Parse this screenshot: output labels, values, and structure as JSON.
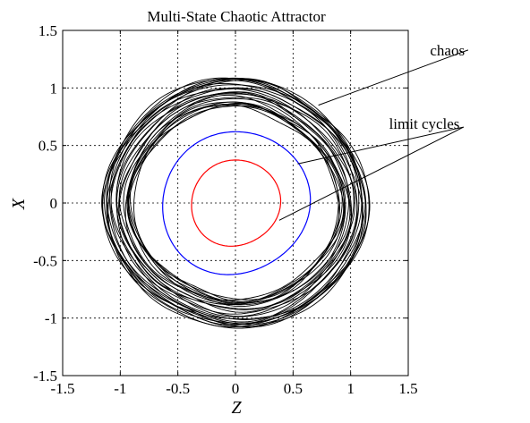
{
  "chart_data": {
    "type": "line",
    "title": "Multi-State Chaotic Attractor",
    "xlabel": "Z",
    "ylabel": "X",
    "xlim": [
      -1.5,
      1.5
    ],
    "ylim": [
      -1.5,
      1.5
    ],
    "xticks": [
      -1.5,
      -1,
      -0.5,
      0,
      0.5,
      1,
      1.5
    ],
    "yticks": [
      -1.5,
      -1,
      -0.5,
      0,
      0.5,
      1,
      1.5
    ],
    "xtick_labels": [
      "-1.5",
      "-1",
      "-0.5",
      "0",
      "0.5",
      "1",
      "1.5"
    ],
    "ytick_labels": [
      "-1.5",
      "-1",
      "-0.5",
      "0",
      "0.5",
      "1",
      "1.5"
    ],
    "grid": true,
    "aspect": "equal",
    "series": [
      {
        "color": "#000000",
        "strands": 26,
        "center_z": 0,
        "radius_range": [
          0.86,
          1.1
        ],
        "shape_note": "banded chaotic orbit with lobes near (-1.1,0) and (1.1,-0.1)",
        "extent": {
          "z": [
            -1.12,
            1.15
          ],
          "x": [
            -1.09,
            1.1
          ]
        }
      },
      {
        "color": "#0000ff",
        "radii": {
          "z": 0.63,
          "x": 0.63
        },
        "shape_note": "single limit cycle, slightly egg-shaped",
        "extent": {
          "z": [
            -0.63,
            0.63
          ],
          "x": [
            -0.63,
            0.63
          ]
        }
      },
      {
        "color": "#ff0000",
        "radii": {
          "z": 0.38,
          "x": 0.38
        },
        "shape_note": "single limit cycle, nearly circular",
        "extent": {
          "z": [
            -0.38,
            0.38
          ],
          "x": [
            -0.38,
            0.38
          ]
        }
      }
    ],
    "annotations": [
      {
        "text": "chaos",
        "label_at": [
          1.84,
          1.33
        ],
        "pointers": [
          {
            "from": [
              2.02,
              1.33
            ],
            "to": [
              0.72,
              0.85
            ]
          }
        ]
      },
      {
        "text": "limit cycles",
        "label_at": [
          1.64,
          0.69
        ],
        "pointers": [
          {
            "from": [
              1.98,
              0.66
            ],
            "to": [
              0.54,
              0.34
            ]
          },
          {
            "from": [
              1.98,
              0.66
            ],
            "to": [
              0.38,
              -0.15
            ]
          }
        ]
      }
    ]
  }
}
